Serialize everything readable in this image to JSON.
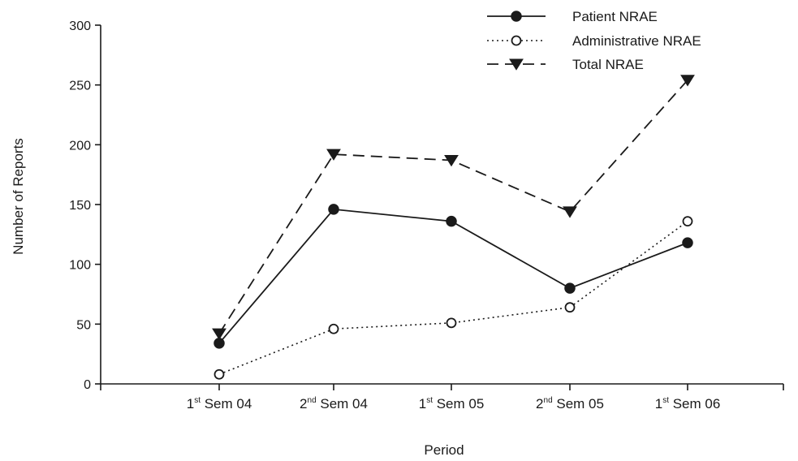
{
  "chart_data": {
    "type": "line",
    "xlabel": "Period",
    "ylabel": "Number of Reports",
    "ylim": [
      0,
      300
    ],
    "yticks": [
      0,
      50,
      100,
      150,
      200,
      250,
      300
    ],
    "grid": false,
    "legend_position": "top-right",
    "categories": [
      {
        "ord": "1",
        "sup": "st",
        "rest": " Sem 04"
      },
      {
        "ord": "2",
        "sup": "nd",
        "rest": " Sem 04"
      },
      {
        "ord": "1",
        "sup": "st",
        "rest": " Sem 05"
      },
      {
        "ord": "2",
        "sup": "nd",
        "rest": " Sem 05"
      },
      {
        "ord": "1",
        "sup": "st",
        "rest": " Sem 06"
      }
    ],
    "series": [
      {
        "name": "Patient NRAE",
        "values": [
          34,
          146,
          136,
          80,
          118
        ],
        "style": "solid",
        "marker": "filled-circle"
      },
      {
        "name": "Administrative NRAE",
        "values": [
          8,
          46,
          51,
          64,
          136
        ],
        "style": "dotted",
        "marker": "open-circle"
      },
      {
        "name": "Total NRAE",
        "values": [
          42,
          192,
          187,
          144,
          254
        ],
        "style": "dashed",
        "marker": "filled-triangle-down"
      }
    ]
  },
  "colors": {
    "ink": "#1a1a1a",
    "background": "#ffffff"
  }
}
